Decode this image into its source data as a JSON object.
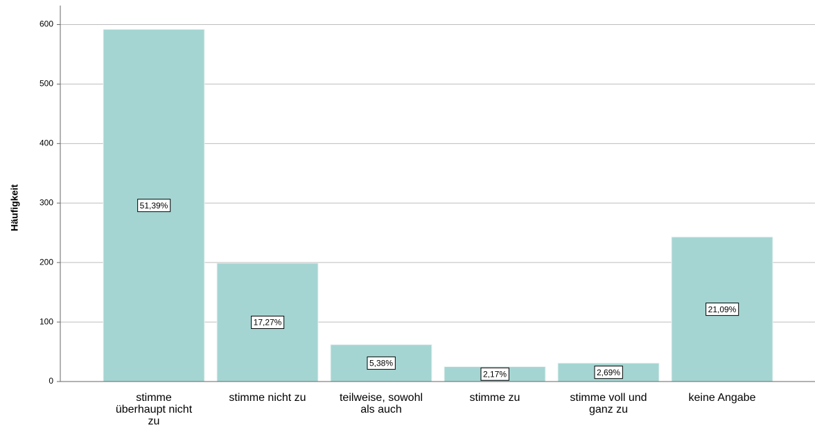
{
  "chart_data": {
    "type": "bar",
    "y_label": "Häufigkeit",
    "categories": [
      "stimme überhaupt nicht zu",
      "stimme nicht zu",
      "teilweise, sowohl als auch",
      "stimme zu",
      "stimme voll und ganz zu",
      "keine Angabe"
    ],
    "values": [
      592,
      199,
      62,
      25,
      31,
      243
    ],
    "percentage_labels": [
      "51,39%",
      "17,27%",
      "5,38%",
      "2,17%",
      "2,69%",
      "21,09%"
    ],
    "color": "#a5d5d2",
    "ylim": [
      0,
      632
    ],
    "yticks": [
      0,
      100,
      200,
      300,
      400,
      500,
      600
    ],
    "grid": true
  }
}
